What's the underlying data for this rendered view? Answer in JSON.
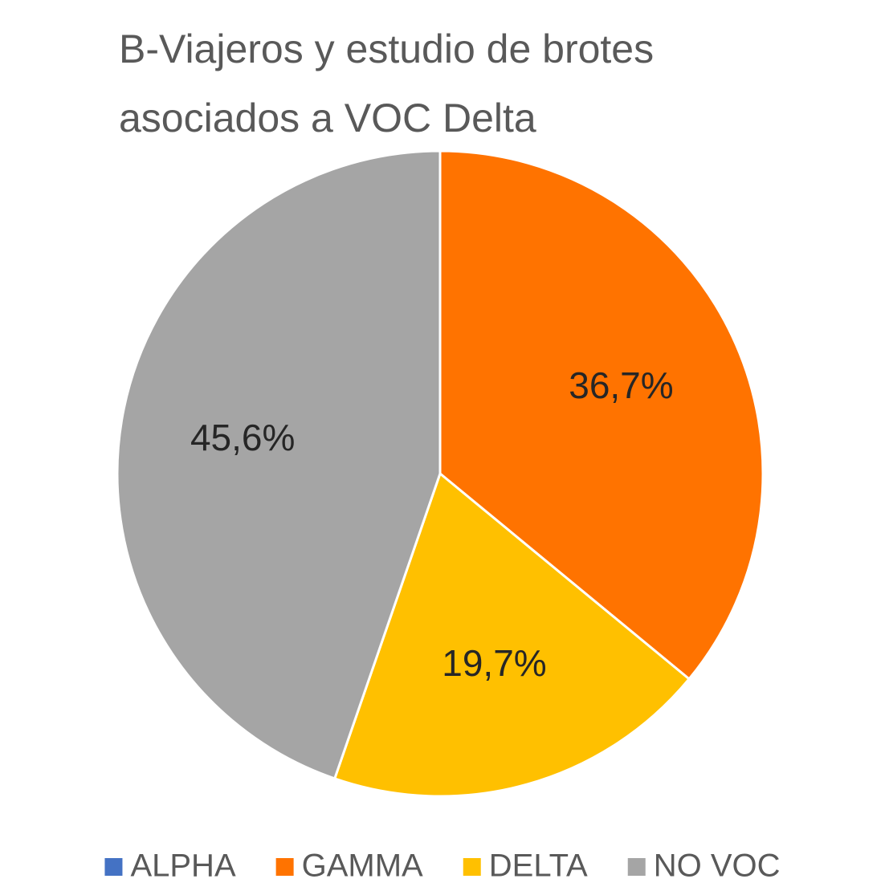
{
  "chart_data": {
    "type": "pie",
    "title": "B-Viajeros y estudio de brotes asociados a VOC Delta",
    "categories": [
      "ALPHA",
      "GAMMA",
      "DELTA",
      "NO VOC"
    ],
    "values": [
      0,
      36.7,
      19.7,
      45.6
    ],
    "value_labels": [
      null,
      "36,7%",
      "19,7%",
      "45,6%"
    ],
    "colors": [
      "#4472c4",
      "#ff7300",
      "#ffc000",
      "#a5a5a5"
    ],
    "legend": "bottom"
  }
}
